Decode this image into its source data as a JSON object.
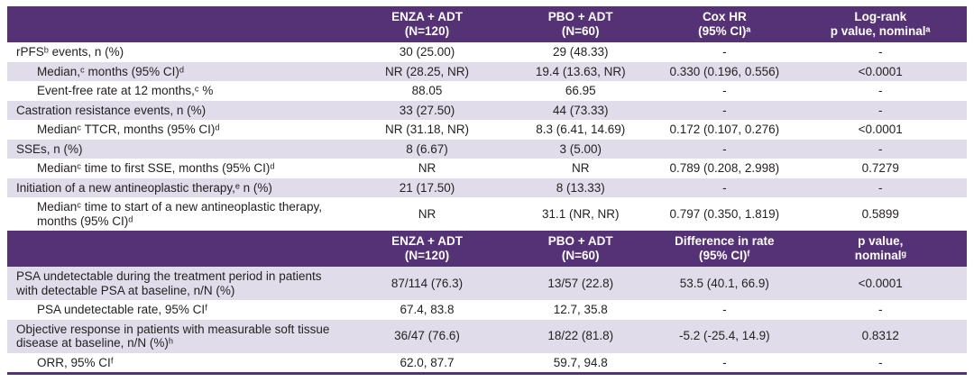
{
  "accent_color": "#553276",
  "row_shade_color": "#e0dcea",
  "tables": [
    {
      "name": "time-to-event-outcomes-table",
      "columns": [
        {
          "name": "row-label-column",
          "lines": [
            ""
          ]
        },
        {
          "name": "enza-adt-column",
          "lines": [
            "ENZA + ADT",
            "(N=120)"
          ]
        },
        {
          "name": "pbo-adt-column",
          "lines": [
            "PBO + ADT",
            "(N=60)"
          ]
        },
        {
          "name": "cox-hr-column",
          "lines": [
            "Cox HR",
            "(95% CI)ᵃ"
          ]
        },
        {
          "name": "log-rank-p-column",
          "lines": [
            "Log-rank",
            "p value, nominalᵃ"
          ]
        }
      ],
      "rows": [
        {
          "label": "rPFSᵇ events, n (%)",
          "indent": false,
          "shaded": false,
          "values": [
            "30 (25.00)",
            "29 (48.33)",
            "-",
            "-"
          ]
        },
        {
          "label": "Median,ᶜ months (95% CI)ᵈ",
          "indent": true,
          "shaded": true,
          "values": [
            "NR (28.25, NR)",
            "19.4 (13.63, NR)",
            "0.330 (0.196, 0.556)",
            "<0.0001"
          ]
        },
        {
          "label": "Event-free rate at 12 months,ᶜ %",
          "indent": true,
          "shaded": false,
          "values": [
            "88.05",
            "66.95",
            "-",
            "-"
          ]
        },
        {
          "label": "Castration resistance events, n (%)",
          "indent": false,
          "shaded": true,
          "values": [
            "33 (27.50)",
            "44 (73.33)",
            "-",
            "-"
          ]
        },
        {
          "label": "Medianᶜ TTCR, months (95% CI)ᵈ",
          "indent": true,
          "shaded": false,
          "values": [
            "NR (31.18, NR)",
            "8.3 (6.41, 14.69)",
            "0.172 (0.107, 0.276)",
            "<0.0001"
          ]
        },
        {
          "label": "SSEs, n (%)",
          "indent": false,
          "shaded": true,
          "values": [
            "8 (6.67)",
            "3 (5.00)",
            "-",
            "-"
          ]
        },
        {
          "label": "Medianᶜ time to first SSE, months (95% CI)ᵈ",
          "indent": true,
          "shaded": false,
          "values": [
            "NR",
            "NR",
            "0.789 (0.208, 2.998)",
            "0.7279"
          ]
        },
        {
          "label": "Initiation of a new antineoplastic therapy,ᵉ n (%)",
          "indent": false,
          "shaded": true,
          "values": [
            "21 (17.50)",
            "8 (13.33)",
            "-",
            "-"
          ]
        },
        {
          "label": "Medianᶜ time to start of a new antineoplastic therapy, months (95% CI)ᵈ",
          "indent": true,
          "shaded": false,
          "values": [
            "NR",
            "31.1 (NR, NR)",
            "0.797 (0.350, 1.819)",
            "0.5899"
          ]
        }
      ]
    },
    {
      "name": "response-outcomes-table",
      "columns": [
        {
          "name": "row-label-column",
          "lines": [
            ""
          ]
        },
        {
          "name": "enza-adt-column",
          "lines": [
            "ENZA + ADT",
            "(N=120)"
          ]
        },
        {
          "name": "pbo-adt-column",
          "lines": [
            "PBO + ADT",
            "(N=60)"
          ]
        },
        {
          "name": "difference-in-rate-column",
          "lines": [
            "Difference in rate",
            "(95% CI)ᶠ"
          ]
        },
        {
          "name": "p-value-nominal-column",
          "lines": [
            "p value,",
            "nominalᵍ"
          ]
        }
      ],
      "rows": [
        {
          "label": "PSA undetectable during the treatment period in patients with detectable PSA at baseline, n/N (%)",
          "indent": false,
          "shaded": true,
          "values": [
            "87/114 (76.3)",
            "13/57 (22.8)",
            "53.5 (40.1, 66.9)",
            "<0.0001"
          ]
        },
        {
          "label": "PSA undetectable rate, 95% CIᶠ",
          "indent": true,
          "shaded": false,
          "values": [
            "67.4, 83.8",
            "12.7, 35.8",
            "-",
            "-"
          ]
        },
        {
          "label": "Objective response in patients with measurable soft tissue disease at baseline, n/N (%)ʰ",
          "indent": false,
          "shaded": true,
          "values": [
            "36/47 (76.6)",
            "18/22 (81.8)",
            "-5.2 (-25.4, 14.9)",
            "0.8312"
          ]
        },
        {
          "label": "ORR, 95% CIᶠ",
          "indent": true,
          "shaded": false,
          "values": [
            "62.0, 87.7",
            "59.7, 94.8",
            "-",
            "-"
          ]
        }
      ]
    }
  ]
}
